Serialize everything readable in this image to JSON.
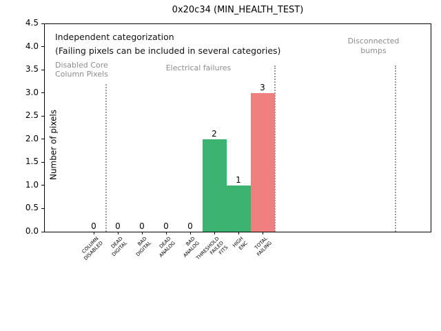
{
  "chart_data": {
    "type": "bar",
    "title": "0x20c34 (MIN_HEALTH_TEST)",
    "ylabel": "Number of pixels",
    "xlabel": "",
    "ylim": [
      0,
      4.5
    ],
    "yticks": [
      0.0,
      0.5,
      1.0,
      1.5,
      2.0,
      2.5,
      3.0,
      3.5,
      4.0,
      4.5
    ],
    "categories": [
      [
        "COLUMN",
        "DISABLED"
      ],
      [
        "DEAD",
        "DIGITAL"
      ],
      [
        "BAD",
        "DIGITAL"
      ],
      [
        "DEAD",
        "ANALOG"
      ],
      [
        "BAD",
        "ANALOG"
      ],
      [
        "THRESHOLD",
        "FAILED",
        "FITS"
      ],
      [
        "HIGH",
        "ENC"
      ],
      [
        "TOTAL",
        "FAILING"
      ]
    ],
    "values": [
      0,
      0,
      0,
      0,
      0,
      2,
      1,
      3
    ],
    "bar_colors": [
      "#3cb371",
      "#3cb371",
      "#3cb371",
      "#3cb371",
      "#3cb371",
      "#3cb371",
      "#3cb371",
      "#f08080"
    ],
    "separators_x": [
      0.5,
      7.5,
      12.5
    ],
    "grid": false,
    "legend": null,
    "annotations": {
      "note_line1": "Independent categorization",
      "note_line2": "(Failing pixels can be included in several categories)",
      "section_disabled_core": [
        "Disabled Core",
        "Column Pixels"
      ],
      "section_electrical": "Electrical failures",
      "section_disconnected": [
        "Disconnected",
        "bumps"
      ]
    },
    "colors": {
      "bar_green": "#3cb371",
      "bar_total_red": "#f08080",
      "section_text_gray": "#8c8c8c",
      "separator_gray": "#999999",
      "axis_black": "#000000"
    }
  }
}
